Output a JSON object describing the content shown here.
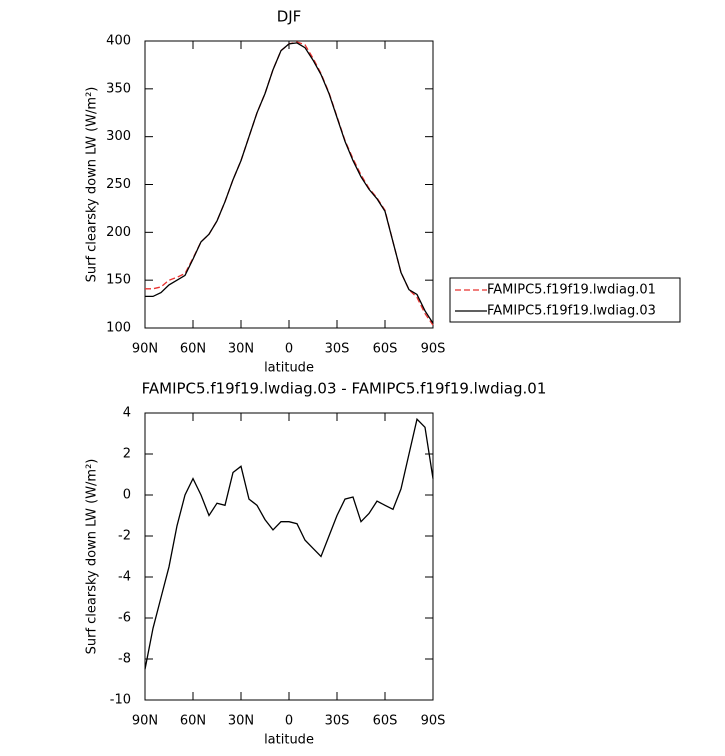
{
  "chart_data": [
    {
      "type": "line",
      "title": "DJF",
      "xlabel": "latitude",
      "ylabel": "Surf clearsky down LW (W/m²)",
      "x": [
        90,
        85,
        80,
        75,
        70,
        65,
        60,
        55,
        50,
        45,
        40,
        35,
        30,
        25,
        20,
        15,
        10,
        5,
        0,
        -5,
        -10,
        -15,
        -20,
        -25,
        -30,
        -35,
        -40,
        -45,
        -50,
        -55,
        -60,
        -65,
        -70,
        -75,
        -80,
        -85,
        -90
      ],
      "series": [
        {
          "name": "FAMIPC5.f19f19.lwdiag.01",
          "color": "#e8312f",
          "dash": true,
          "values": [
            141,
            141,
            143,
            150,
            153,
            157,
            173,
            190,
            198,
            212,
            232,
            255,
            275,
            300,
            325,
            345,
            370,
            390,
            397,
            399,
            396,
            382,
            366,
            346,
            321,
            296,
            277,
            260,
            246,
            236,
            223,
            190,
            158,
            140,
            132,
            115,
            103
          ]
        },
        {
          "name": "FAMIPC5.f19f19.lwdiag.03",
          "color": "#000000",
          "dash": false,
          "values": [
            133,
            133,
            137,
            145,
            150,
            155,
            172,
            190,
            198,
            212,
            232,
            255,
            275,
            300,
            325,
            345,
            370,
            390,
            397,
            398,
            393,
            380,
            365,
            345,
            320,
            295,
            275,
            258,
            245,
            235,
            222,
            190,
            158,
            140,
            135,
            118,
            105
          ]
        }
      ],
      "xlim": [
        90,
        -90
      ],
      "xticks": [
        {
          "value": 90,
          "label": "90N"
        },
        {
          "value": 60,
          "label": "60N"
        },
        {
          "value": 30,
          "label": "30N"
        },
        0,
        {
          "value": -30,
          "label": "30S"
        },
        {
          "value": -60,
          "label": "60S"
        },
        {
          "value": -90,
          "label": "90S"
        }
      ],
      "ylim": [
        100,
        400
      ],
      "yticks": [
        100,
        150,
        200,
        250,
        300,
        350,
        400
      ],
      "legend": "right"
    },
    {
      "type": "line",
      "title": "FAMIPC5.f19f19.lwdiag.03 - FAMIPC5.f19f19.lwdiag.01",
      "xlabel": "latitude",
      "ylabel": "Surf clearsky down LW (W/m²)",
      "x": [
        90,
        85,
        80,
        75,
        70,
        65,
        60,
        55,
        50,
        45,
        40,
        35,
        30,
        25,
        20,
        15,
        10,
        5,
        0,
        -5,
        -10,
        -15,
        -20,
        -25,
        -30,
        -35,
        -40,
        -45,
        -50,
        -55,
        -60,
        -65,
        -70,
        -75,
        -80,
        -85,
        -90
      ],
      "series": [
        {
          "color": "#000000",
          "dash": false,
          "values": [
            -8.5,
            -6.5,
            -5,
            -3.5,
            -1.5,
            0,
            0.8,
            0,
            -1,
            -0.4,
            -0.5,
            1.1,
            1.4,
            -0.2,
            -0.5,
            -1.2,
            -1.7,
            -1.3,
            -1.3,
            -1.4,
            -2.2,
            -2.6,
            -3.0,
            -2.0,
            -1.0,
            -0.2,
            -0.1,
            -1.3,
            -0.9,
            -0.3,
            -0.5,
            -0.7,
            0.3,
            2.0,
            3.7,
            3.3,
            0.8
          ]
        }
      ],
      "xlim": [
        90,
        -90
      ],
      "xticks": [
        {
          "value": 90,
          "label": "90N"
        },
        {
          "value": 60,
          "label": "60N"
        },
        {
          "value": 30,
          "label": "30N"
        },
        0,
        {
          "value": -30,
          "label": "30S"
        },
        {
          "value": -60,
          "label": "60S"
        },
        {
          "value": -90,
          "label": "90S"
        }
      ],
      "ylim": [
        -10,
        4
      ],
      "yticks": [
        -10,
        -8,
        -6,
        -4,
        -2,
        0,
        2,
        4
      ]
    }
  ]
}
